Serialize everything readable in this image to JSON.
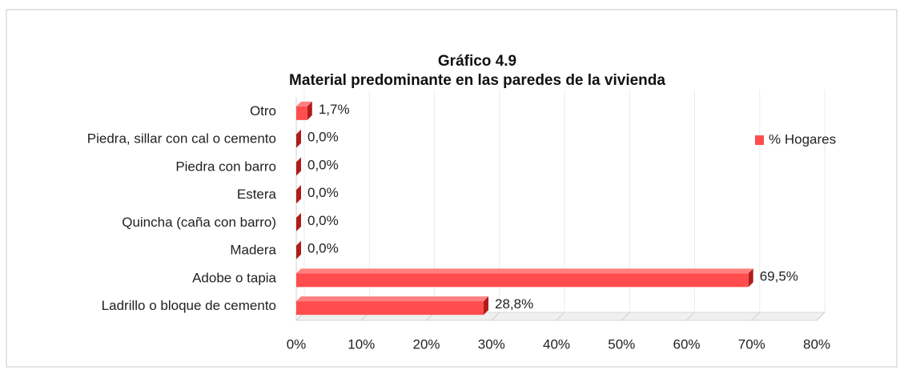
{
  "chart_data": {
    "type": "bar",
    "orientation": "horizontal",
    "title": [
      "Gráfico 4.9",
      "Material predominante en las paredes de la vivienda"
    ],
    "categories": [
      "Otro",
      "Piedra, sillar con cal o cemento",
      "Piedra con barro",
      "Estera",
      "Quincha (caña con barro)",
      "Madera",
      "Adobe o tapia",
      "Ladrillo o bloque de cemento"
    ],
    "series": [
      {
        "name": "% Hogares",
        "color": "#ff4d4d",
        "values": [
          1.7,
          0,
          0,
          0,
          0,
          0,
          69.5,
          28.8
        ],
        "value_labels": [
          "1,7%",
          "0,0%",
          "0,0%",
          "0,0%",
          "0,0%",
          "0,0%",
          "69,5%",
          "28,8%"
        ]
      }
    ],
    "xlim": [
      0,
      80
    ],
    "xticks": [
      {
        "value": 0,
        "label": "0%"
      },
      {
        "value": 10,
        "label": "10%"
      },
      {
        "value": 20,
        "label": "20%"
      },
      {
        "value": 30,
        "label": "30%"
      },
      {
        "value": 40,
        "label": "40%"
      },
      {
        "value": 50,
        "label": "50%"
      },
      {
        "value": 60,
        "label": "60%"
      },
      {
        "value": 70,
        "label": "70%"
      },
      {
        "value": 80,
        "label": "80%"
      }
    ],
    "grid": true,
    "legend": "right"
  }
}
